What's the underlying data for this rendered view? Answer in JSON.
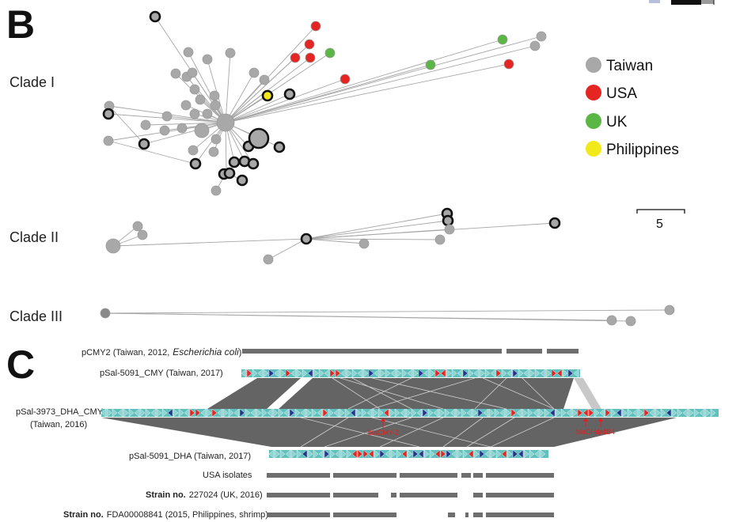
{
  "panel_b": {
    "letter": "B",
    "clades": [
      {
        "label": "Clade I"
      },
      {
        "label": "Clade II"
      },
      {
        "label": "Clade III"
      }
    ],
    "legend": [
      {
        "label": "Taiwan",
        "color": "#a8a8a8"
      },
      {
        "label": "USA",
        "color": "#e52521"
      },
      {
        "label": "UK",
        "color": "#5bb745"
      },
      {
        "label": "Philippines",
        "color": "#f2e91a"
      }
    ],
    "scale_label": "5"
  },
  "panel_c": {
    "letter": "C",
    "tracks": {
      "pcmy2_prefix": "pCMY2 (Taiwan, 2012,",
      "pcmy2_species": "Escherichia coli",
      "pcmy2_suffix": ")",
      "psal5091_cmy": "pSal-5091_CMY (Taiwan, 2017)",
      "psal3973_line1": "pSal-3973_DHA_CMY",
      "psal3973_line2": "(Taiwan, 2016)",
      "psal5091_dha": "pSal-5091_DHA (Taiwan, 2017)",
      "usa": "USA isolates",
      "strain_227024_prefix": "Strain no.",
      "strain_227024_suffix": "227024 (UK, 2016)",
      "strain_fda_prefix": "Strain no.",
      "strain_fda_suffix": "FDA00008841 (2015, Philippines, shrimp)"
    },
    "gene_labels": {
      "bla_cmy": "blaCMY-2",
      "bla_dha": "blaDHA-1",
      "qnr": "qnrB4"
    },
    "colors": {
      "plasmid": "#5fc0be",
      "resistance": "#e52521",
      "mobile": "#27348b",
      "synteny": "#5c5c5c"
    }
  }
}
